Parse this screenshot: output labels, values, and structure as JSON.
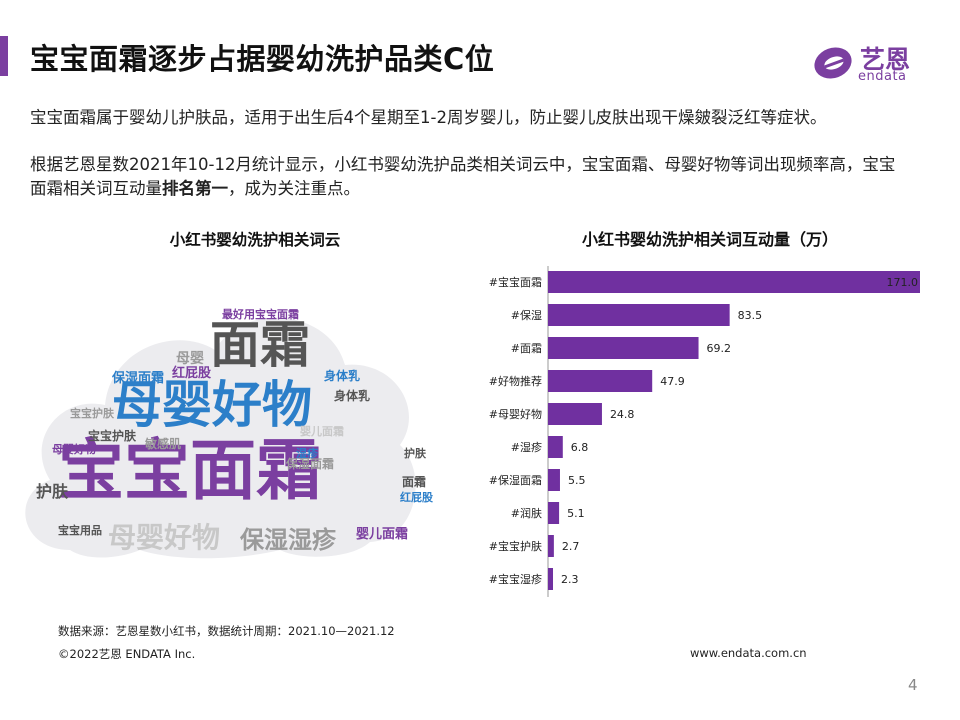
{
  "header": {
    "title": "宝宝面霜逐步占据婴幼洗护品类C位",
    "logo_text": "艺恩",
    "logo_sub": "endata"
  },
  "content": {
    "paragraphs": [
      {
        "text": "宝宝面霜属于婴幼儿护肤品，适用于出生后4个星期至1-2周岁婴儿，防止婴儿皮肤出现干燥皴裂泛红等症状。"
      },
      {
        "text_before": "根据艺恩星数2021年10-12月统计显示，小红书婴幼洗护品类相关词云中，宝宝面霜、母婴好物等词出现频率高，宝宝面霜相关词互动量",
        "text_bold": "排名第一",
        "text_after": "，成为关注重点。"
      }
    ]
  },
  "word_cloud": {
    "title": "小红书婴幼洗护相关词云",
    "words": [
      {
        "text": "宝宝面霜",
        "color": "#7b3fa0"
      },
      {
        "text": "母婴好物",
        "color": "#2c7fc9"
      },
      {
        "text": "面霜",
        "color": "#555555"
      },
      {
        "text": "保湿湿疹",
        "color": "#9a9a9a"
      },
      {
        "text": "母婴好物",
        "color": "#c8c8c8"
      },
      {
        "text": "红屁股",
        "color": "#7b3fa0"
      },
      {
        "text": "保湿面霜",
        "color": "#2c7fc9"
      },
      {
        "text": "最好用宝宝面霜",
        "color": "#7b3fa0"
      },
      {
        "text": "敏感肌",
        "color": "#9a9a9a"
      },
      {
        "text": "护肤",
        "color": "#555555"
      },
      {
        "text": "宝宝护肤",
        "color": "#555555"
      },
      {
        "text": "身体乳",
        "color": "#2c7fc9"
      },
      {
        "text": "婴儿面霜",
        "color": "#7b3fa0"
      },
      {
        "text": "宝宝用品",
        "color": "#555555"
      },
      {
        "text": "母婴",
        "color": "#9a9a9a"
      },
      {
        "text": "面霜",
        "color": "#555555"
      },
      {
        "text": "湿疹",
        "color": "#2c7fc9"
      },
      {
        "text": "护肤",
        "color": "#555555"
      },
      {
        "text": "保湿面霜",
        "color": "#9a9a9a"
      },
      {
        "text": "红屁股",
        "color": "#2c7fc9"
      },
      {
        "text": "身体乳",
        "color": "#555555"
      },
      {
        "text": "婴儿面霜",
        "color": "#c8c8c8"
      },
      {
        "text": "宝宝护肤",
        "color": "#9a9a9a"
      },
      {
        "text": "母婴好物",
        "color": "#7b3fa0"
      }
    ]
  },
  "chart_data": {
    "type": "bar",
    "orientation": "horizontal",
    "title": "小红书婴幼洗护相关词互动量（万）",
    "categories": [
      "#宝宝面霜",
      "#保湿",
      "#面霜",
      "#好物推荐",
      "#母婴好物",
      "#湿疹",
      "#保湿面霜",
      "#润肤",
      "#宝宝护肤",
      "#宝宝湿疹"
    ],
    "values": [
      171.0,
      83.5,
      69.2,
      47.9,
      24.8,
      6.8,
      5.5,
      5.1,
      2.7,
      2.3
    ],
    "value_labels": [
      "171.0",
      "83.5",
      "69.2",
      "47.9",
      "24.8",
      "6.8",
      "5.5",
      "5.1",
      "2.7",
      "2.3"
    ],
    "bar_color": "#7030a0",
    "xlim": [
      0,
      171.0
    ],
    "grid": false,
    "legend": "none"
  },
  "footer": {
    "source": "数据来源：艺恩星数小红书，数据统计周期：2021.10—2021.12",
    "copyright": "©2022艺恩 ENDATA Inc.",
    "website": "www.endata.com.cn",
    "page_number": "4"
  }
}
